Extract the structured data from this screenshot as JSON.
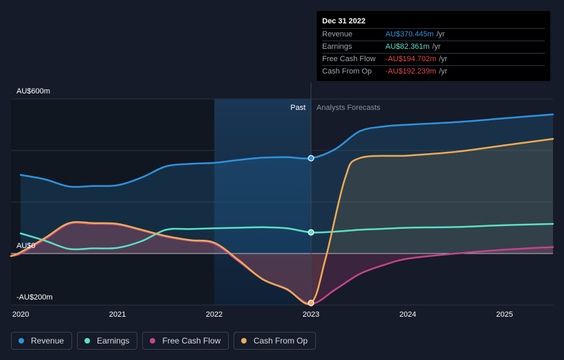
{
  "chart_data": {
    "type": "area",
    "x_ticks": [
      "2020",
      "2021",
      "2022",
      "2023",
      "2024",
      "2025"
    ],
    "y_ticks": [
      {
        "value": 600,
        "label": "AU$600m"
      },
      {
        "value": 0,
        "label": "AU$0"
      },
      {
        "value": -200,
        "label": "-AU$200m"
      }
    ],
    "ylim": [
      -200,
      600
    ],
    "xlim": [
      2019.9,
      2025.5
    ],
    "past_label": "Past",
    "forecast_label": "Analysts Forecasts",
    "divider_x": 2023.0,
    "series": [
      {
        "name": "Revenue",
        "color": "#2e93e0",
        "points": [
          [
            2020.0,
            305
          ],
          [
            2020.25,
            288
          ],
          [
            2020.5,
            260
          ],
          [
            2020.75,
            262
          ],
          [
            2021.0,
            265
          ],
          [
            2021.25,
            295
          ],
          [
            2021.5,
            338
          ],
          [
            2021.75,
            348
          ],
          [
            2022.0,
            352
          ],
          [
            2022.25,
            363
          ],
          [
            2022.5,
            372
          ],
          [
            2022.75,
            374
          ],
          [
            2023.0,
            370
          ],
          [
            2023.25,
            405
          ],
          [
            2023.5,
            474
          ],
          [
            2023.75,
            493
          ],
          [
            2024.0,
            500
          ],
          [
            2024.5,
            510
          ],
          [
            2025.0,
            525
          ],
          [
            2025.5,
            540
          ]
        ]
      },
      {
        "name": "Earnings",
        "color": "#5ae1c8",
        "points": [
          [
            2020.0,
            78
          ],
          [
            2020.25,
            50
          ],
          [
            2020.5,
            18
          ],
          [
            2020.75,
            20
          ],
          [
            2021.0,
            22
          ],
          [
            2021.25,
            48
          ],
          [
            2021.5,
            92
          ],
          [
            2021.75,
            95
          ],
          [
            2022.0,
            98
          ],
          [
            2022.25,
            100
          ],
          [
            2022.5,
            102
          ],
          [
            2022.75,
            98
          ],
          [
            2023.0,
            82
          ],
          [
            2023.25,
            85
          ],
          [
            2023.5,
            92
          ],
          [
            2023.75,
            96
          ],
          [
            2024.0,
            100
          ],
          [
            2024.5,
            103
          ],
          [
            2025.0,
            110
          ],
          [
            2025.5,
            115
          ]
        ]
      },
      {
        "name": "Free Cash Flow",
        "color": "#c2468a",
        "points": [
          [
            2019.9,
            -10
          ],
          [
            2020.0,
            0
          ],
          [
            2020.25,
            55
          ],
          [
            2020.5,
            115
          ],
          [
            2020.75,
            115
          ],
          [
            2021.0,
            112
          ],
          [
            2021.25,
            90
          ],
          [
            2021.5,
            65
          ],
          [
            2021.75,
            50
          ],
          [
            2022.0,
            38
          ],
          [
            2022.25,
            -30
          ],
          [
            2022.5,
            -100
          ],
          [
            2022.75,
            -140
          ],
          [
            2023.0,
            -195
          ],
          [
            2023.25,
            -140
          ],
          [
            2023.5,
            -80
          ],
          [
            2023.75,
            -45
          ],
          [
            2024.0,
            -20
          ],
          [
            2024.5,
            0
          ],
          [
            2025.0,
            15
          ],
          [
            2025.5,
            25
          ]
        ]
      },
      {
        "name": "Cash From Op",
        "color": "#f0ab54",
        "points": [
          [
            2019.9,
            -10
          ],
          [
            2020.0,
            5
          ],
          [
            2020.25,
            60
          ],
          [
            2020.5,
            118
          ],
          [
            2020.75,
            118
          ],
          [
            2021.0,
            115
          ],
          [
            2021.25,
            92
          ],
          [
            2021.5,
            68
          ],
          [
            2021.75,
            52
          ],
          [
            2022.0,
            42
          ],
          [
            2022.25,
            -25
          ],
          [
            2022.5,
            -100
          ],
          [
            2022.75,
            -138
          ],
          [
            2023.0,
            -192
          ],
          [
            2023.15,
            -20
          ],
          [
            2023.35,
            290
          ],
          [
            2023.5,
            370
          ],
          [
            2024.0,
            380
          ],
          [
            2024.5,
            395
          ],
          [
            2025.0,
            420
          ],
          [
            2025.5,
            445
          ]
        ]
      }
    ],
    "markers": [
      {
        "series": "Revenue",
        "x": 2023.0,
        "y": 370
      },
      {
        "series": "Earnings",
        "x": 2023.0,
        "y": 82
      },
      {
        "series": "Cash From Op",
        "x": 2023.0,
        "y": -192
      }
    ]
  },
  "tooltip": {
    "date": "Dec 31 2022",
    "rows": [
      {
        "label": "Revenue",
        "value": "AU$370.445m",
        "unit": "/yr",
        "color": "#2e93e0"
      },
      {
        "label": "Earnings",
        "value": "AU$82.361m",
        "unit": "/yr",
        "color": "#5ae1c8"
      },
      {
        "label": "Free Cash Flow",
        "value": "-AU$194.702m",
        "unit": "/yr",
        "color": "#e2474b"
      },
      {
        "label": "Cash From Op",
        "value": "-AU$192.239m",
        "unit": "/yr",
        "color": "#e2474b"
      }
    ]
  },
  "legend": [
    {
      "label": "Revenue",
      "color": "#2e93e0"
    },
    {
      "label": "Earnings",
      "color": "#5ae1c8"
    },
    {
      "label": "Free Cash Flow",
      "color": "#c2468a"
    },
    {
      "label": "Cash From Op",
      "color": "#f0ab54"
    }
  ]
}
